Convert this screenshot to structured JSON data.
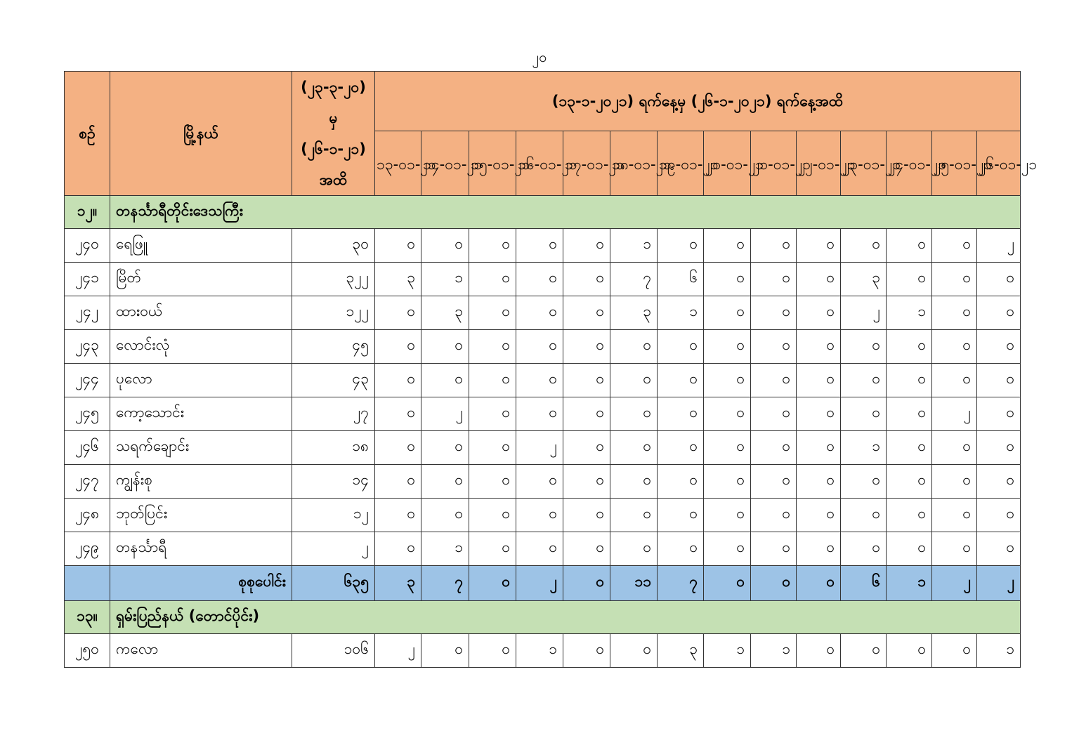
{
  "page_number": "၂၀",
  "header": {
    "serial": "စဉ်",
    "township": "မြို့နယ်",
    "cumulative": "(၂၃-၃-၂၀) မှ (၂၆-၁-၂၁) အထိ",
    "period": "(၁၃-၁-၂၀၂၁) ရက်နေ့မှ (၂၆-၁-၂၀၂၁) ရက်နေ့အထိ",
    "dates": [
      "၁၃-၀၁-၂၁",
      "၁၄-၀၁-၂၁",
      "၁၅-၀၁-၂၁",
      "၁၆-၀၁-၂၁",
      "၁၇-၀၁-၂၁",
      "၁၈-၀၁-၂၁",
      "၁၉-၀၁-၂၁",
      "၂၀-၀၁-၂၁",
      "၂၁-၀၁-၂၁",
      "၂၂-၀၁-၂၁",
      "၂၃-၀၁-၂၁",
      "၂၄-၀၁-၂၁",
      "၂၅-၀၁-၂၁",
      "၂၆-၀၁-၂၁"
    ]
  },
  "sections": [
    {
      "number": "၁၂။",
      "name": "တနင်္သာရီတိုင်းဒေသကြီး",
      "rows": [
        {
          "sr": "၂၄၀",
          "township": "ရေဖြူ",
          "cumulative": "၃၀",
          "values": [
            "၀",
            "၀",
            "၀",
            "၀",
            "၀",
            "၁",
            "၀",
            "၀",
            "၀",
            "၀",
            "၀",
            "၀",
            "၀",
            "၂"
          ]
        },
        {
          "sr": "၂၄၁",
          "township": "မြိတ်",
          "cumulative": "၃၂၂",
          "values": [
            "၃",
            "၁",
            "၀",
            "၀",
            "၀",
            "၇",
            "၆",
            "၀",
            "၀",
            "၀",
            "၃",
            "၀",
            "၀",
            "၀"
          ]
        },
        {
          "sr": "၂၄၂",
          "township": "ထားဝယ်",
          "cumulative": "၁၂၂",
          "values": [
            "၀",
            "၃",
            "၀",
            "၀",
            "၀",
            "၃",
            "၁",
            "၀",
            "၀",
            "၀",
            "၂",
            "၁",
            "၀",
            "၀"
          ]
        },
        {
          "sr": "၂၄၃",
          "township": "လောင်းလုံ",
          "cumulative": "၄၅",
          "values": [
            "၀",
            "၀",
            "၀",
            "၀",
            "၀",
            "၀",
            "၀",
            "၀",
            "၀",
            "၀",
            "၀",
            "၀",
            "၀",
            "၀"
          ]
        },
        {
          "sr": "၂၄၄",
          "township": "ပုလော",
          "cumulative": "၄၃",
          "values": [
            "၀",
            "၀",
            "၀",
            "၀",
            "၀",
            "၀",
            "၀",
            "၀",
            "၀",
            "၀",
            "၀",
            "၀",
            "၀",
            "၀"
          ]
        },
        {
          "sr": "၂၄၅",
          "township": "ကော့သောင်း",
          "cumulative": "၂၇",
          "values": [
            "၀",
            "၂",
            "၀",
            "၀",
            "၀",
            "၀",
            "၀",
            "၀",
            "၀",
            "၀",
            "၀",
            "၀",
            "၂",
            "၀"
          ]
        },
        {
          "sr": "၂၄၆",
          "township": "သရက်ချောင်း",
          "cumulative": "၁၈",
          "values": [
            "၀",
            "၀",
            "၀",
            "၂",
            "၀",
            "၀",
            "၀",
            "၀",
            "၀",
            "၀",
            "၁",
            "၀",
            "၀",
            "၀"
          ]
        },
        {
          "sr": "၂၄၇",
          "township": "ကျွန်းစု",
          "cumulative": "၁၄",
          "values": [
            "၀",
            "၀",
            "၀",
            "၀",
            "၀",
            "၀",
            "၀",
            "၀",
            "၀",
            "၀",
            "၀",
            "၀",
            "၀",
            "၀"
          ]
        },
        {
          "sr": "၂၄၈",
          "township": "ဘုတ်ပြင်း",
          "cumulative": "၁၂",
          "values": [
            "၀",
            "၀",
            "၀",
            "၀",
            "၀",
            "၀",
            "၀",
            "၀",
            "၀",
            "၀",
            "၀",
            "၀",
            "၀",
            "၀"
          ]
        },
        {
          "sr": "၂၄၉",
          "township": "တနင်္သာရီ",
          "cumulative": "၂",
          "values": [
            "၀",
            "၁",
            "၀",
            "၀",
            "၀",
            "၀",
            "၀",
            "၀",
            "၀",
            "၀",
            "၀",
            "၀",
            "၀",
            "၀"
          ]
        }
      ],
      "total": {
        "label": "စုစုပေါင်း",
        "cumulative": "၆၃၅",
        "values": [
          "၃",
          "၇",
          "၀",
          "၂",
          "၀",
          "၁၁",
          "၇",
          "၀",
          "၀",
          "၀",
          "၆",
          "၁",
          "၂",
          "၂"
        ]
      }
    },
    {
      "number": "၁၃။",
      "name": "ရှမ်းပြည်နယ် (တောင်ပိုင်း)",
      "rows": [
        {
          "sr": "၂၅၀",
          "township": "ကလော",
          "cumulative": "၁၀၆",
          "values": [
            "၂",
            "၀",
            "၀",
            "၁",
            "၀",
            "၀",
            "၃",
            "၁",
            "၁",
            "၀",
            "၀",
            "၀",
            "၀",
            "၁"
          ]
        }
      ]
    }
  ],
  "colors": {
    "header": "#f4b183",
    "section": "#c5e0b4",
    "total": "#9dc3e6"
  }
}
